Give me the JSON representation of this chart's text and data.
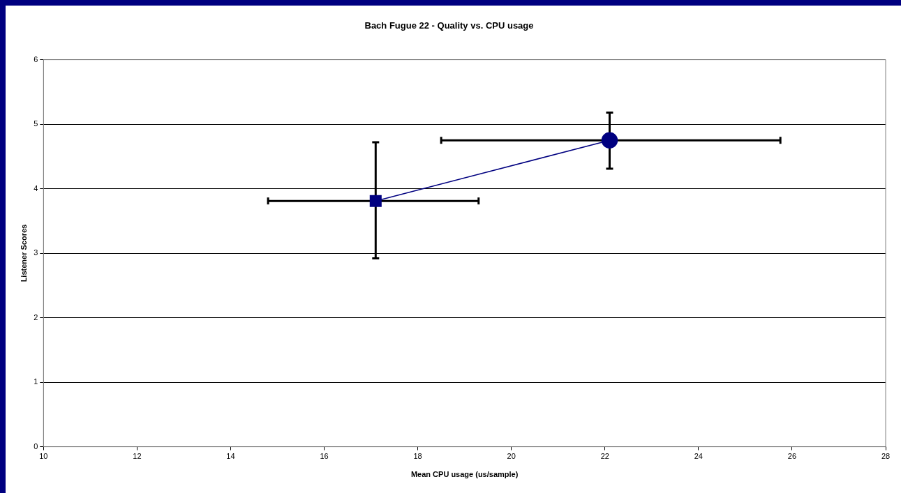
{
  "chart_data": {
    "type": "line",
    "title": "Bach Fugue 22 - Quality vs. CPU usage",
    "xlabel": "Mean CPU usage (us/sample)",
    "ylabel": "Listener Scores",
    "series": [
      {
        "color": "#000080",
        "x": [
          17.1,
          22.1
        ],
        "values": [
          3.81,
          4.75
        ],
        "marker": [
          "square",
          "circle"
        ],
        "errors": [
          [
            2.92,
            4.72
          ],
          [
            4.31,
            5.18
          ]
        ],
        "xerrors": [
          [
            14.8,
            19.3
          ],
          [
            18.5,
            25.75
          ]
        ]
      }
    ],
    "xlim": [
      10,
      28
    ],
    "xticks": [
      10,
      12,
      14,
      16,
      18,
      20,
      22,
      24,
      26,
      28
    ],
    "ylim": [
      0,
      6
    ],
    "yticks": [
      0,
      1,
      2,
      3,
      4,
      5,
      6
    ],
    "grid": "y",
    "legend": false
  }
}
